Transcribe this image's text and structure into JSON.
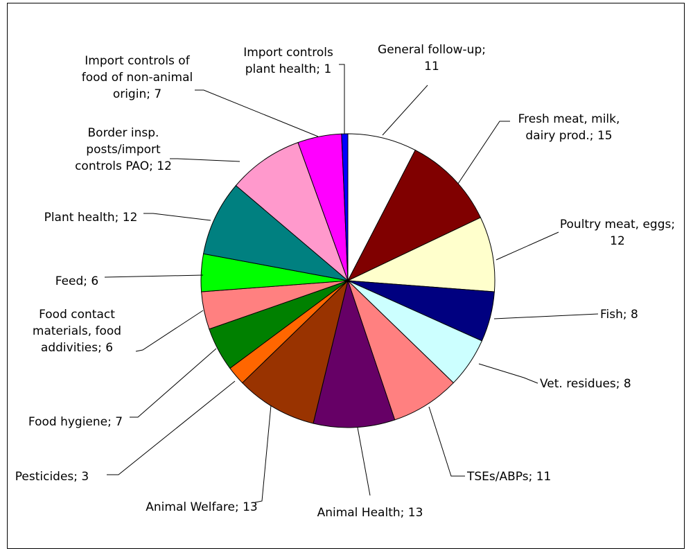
{
  "chart_data": {
    "type": "pie",
    "title": "",
    "start_angle_deg": 0,
    "direction": "clockwise",
    "slices": [
      {
        "label": "General follow-up; 11",
        "lines": [
          "General follow-up;",
          "11"
        ],
        "value": 11,
        "color": "#ffffff"
      },
      {
        "label": "Fresh meat, milk, dairy prod.; 15",
        "lines": [
          "Fresh meat, milk,",
          "dairy prod.; 15"
        ],
        "value": 15,
        "color": "#800000"
      },
      {
        "label": "Poultry meat, eggs; 12",
        "lines": [
          "Poultry meat, eggs;",
          "12"
        ],
        "value": 12,
        "color": "#ffffcc"
      },
      {
        "label": "Fish; 8",
        "lines": [
          "Fish; 8"
        ],
        "value": 8,
        "color": "#000080"
      },
      {
        "label": "Vet. residues; 8",
        "lines": [
          "Vet. residues; 8"
        ],
        "value": 8,
        "color": "#ccffff"
      },
      {
        "label": "TSEs/ABPs; 11",
        "lines": [
          "TSEs/ABPs; 11"
        ],
        "value": 11,
        "color": "#ff8080"
      },
      {
        "label": "Animal Health; 13",
        "lines": [
          "Animal Health; 13"
        ],
        "value": 13,
        "color": "#660066"
      },
      {
        "label": "Animal Welfare; 13",
        "lines": [
          "Animal Welfare; 13"
        ],
        "value": 13,
        "color": "#993300"
      },
      {
        "label": "Pesticides; 3",
        "lines": [
          "Pesticides; 3"
        ],
        "value": 3,
        "color": "#ff6600"
      },
      {
        "label": "Food hygiene; 7",
        "lines": [
          "Food hygiene; 7"
        ],
        "value": 7,
        "color": "#008000"
      },
      {
        "label": "Food contact materials, food addivities; 6",
        "lines": [
          "Food contact",
          "materials, food",
          "addivities; 6"
        ],
        "value": 6,
        "color": "#ff8080"
      },
      {
        "label": "Feed; 6",
        "lines": [
          "Feed; 6"
        ],
        "value": 6,
        "color": "#00ff00"
      },
      {
        "label": "Plant health; 12",
        "lines": [
          "Plant health; 12"
        ],
        "value": 12,
        "color": "#008080"
      },
      {
        "label": "Border insp. posts/import controls PAO; 12",
        "lines": [
          "Border insp.",
          "posts/import",
          "controls PAO; 12"
        ],
        "value": 12,
        "color": "#ff99cc"
      },
      {
        "label": "Import controls of food of non-animal origin; 7",
        "lines": [
          "Import controls of",
          "food of non-animal",
          "origin; 7"
        ],
        "value": 7,
        "color": "#ff00ff"
      },
      {
        "label": "Import controls plant health; 1",
        "lines": [
          "Import controls",
          "plant health; 1"
        ],
        "value": 1,
        "color": "#0000ff"
      }
    ]
  }
}
